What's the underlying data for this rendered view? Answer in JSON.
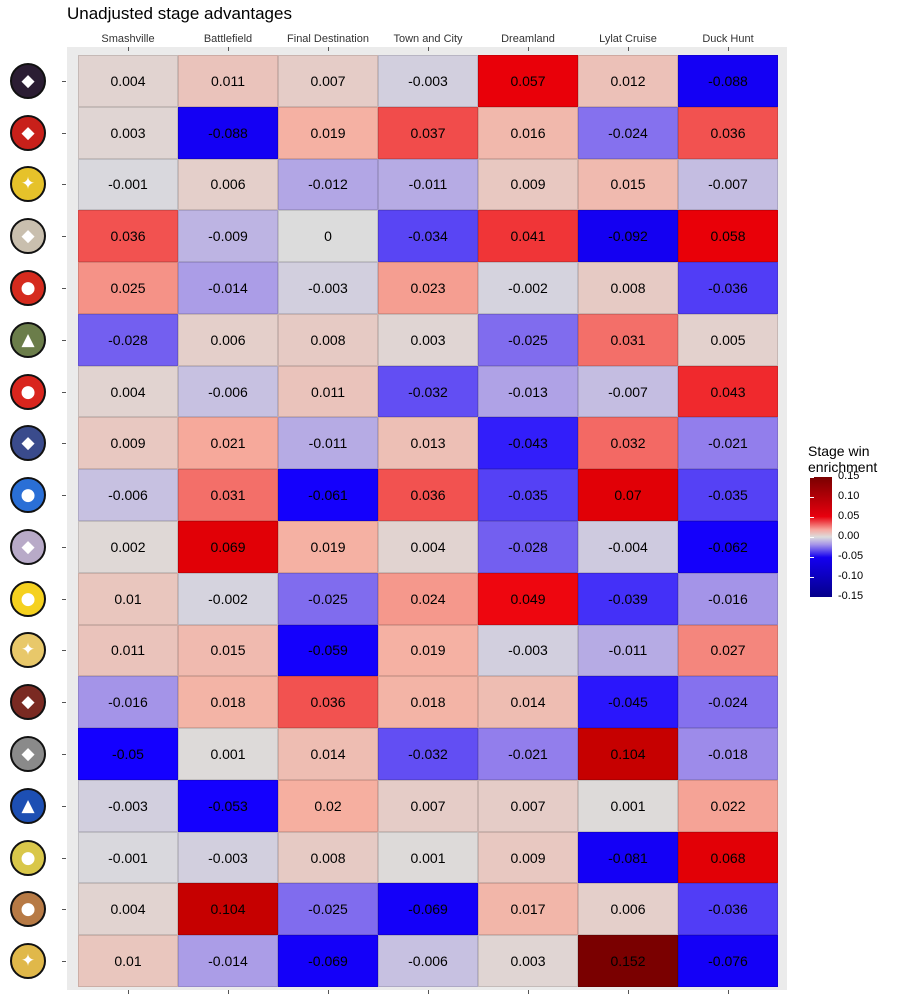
{
  "chart_data": {
    "type": "heatmap",
    "title": "Unadjusted stage advantages",
    "columns": [
      "Smashville",
      "Battlefield",
      "Final Destination",
      "Town and City",
      "Dreamland",
      "Lylat Cruise",
      "Duck Hunt"
    ],
    "row_labels": "fighter portrait icons (no text)",
    "values": [
      [
        "0.004",
        "0.011",
        "0.007",
        "-0.003",
        "0.057",
        "0.012",
        "-0.088"
      ],
      [
        "0.003",
        "-0.088",
        "0.019",
        "0.037",
        "0.016",
        "-0.024",
        "0.036"
      ],
      [
        "-0.001",
        "0.006",
        "-0.012",
        "-0.011",
        "0.009",
        "0.015",
        "-0.007"
      ],
      [
        "0.036",
        "-0.009",
        "0",
        "-0.034",
        "0.041",
        "-0.092",
        "0.058"
      ],
      [
        "0.025",
        "-0.014",
        "-0.003",
        "0.023",
        "-0.002",
        "0.008",
        "-0.036"
      ],
      [
        "-0.028",
        "0.006",
        "0.008",
        "0.003",
        "-0.025",
        "0.031",
        "0.005"
      ],
      [
        "0.004",
        "-0.006",
        "0.011",
        "-0.032",
        "-0.013",
        "-0.007",
        "0.043"
      ],
      [
        "0.009",
        "0.021",
        "-0.011",
        "0.013",
        "-0.043",
        "0.032",
        "-0.021"
      ],
      [
        "-0.006",
        "0.031",
        "-0.061",
        "0.036",
        "-0.035",
        "0.07",
        "-0.035"
      ],
      [
        "0.002",
        "0.069",
        "0.019",
        "0.004",
        "-0.028",
        "-0.004",
        "-0.062"
      ],
      [
        "0.01",
        "-0.002",
        "-0.025",
        "0.024",
        "0.049",
        "-0.039",
        "-0.016"
      ],
      [
        "0.011",
        "0.015",
        "-0.059",
        "0.019",
        "-0.003",
        "-0.011",
        "0.027"
      ],
      [
        "-0.016",
        "0.018",
        "0.036",
        "0.018",
        "0.014",
        "-0.045",
        "-0.024"
      ],
      [
        "-0.05",
        "0.001",
        "0.014",
        "-0.032",
        "-0.021",
        "0.104",
        "-0.018"
      ],
      [
        "-0.003",
        "-0.053",
        "0.02",
        "0.007",
        "0.007",
        "0.001",
        "0.022"
      ],
      [
        "-0.001",
        "-0.003",
        "0.008",
        "0.001",
        "0.009",
        "-0.081",
        "0.068"
      ],
      [
        "0.004",
        "0.104",
        "-0.025",
        "-0.069",
        "0.017",
        "0.006",
        "-0.036"
      ],
      [
        "0.01",
        "-0.014",
        "-0.069",
        "-0.006",
        "0.003",
        "0.152",
        "-0.076"
      ]
    ],
    "color_scale": {
      "type": "diverging",
      "limits": [
        -0.15,
        0.15
      ],
      "low": "#05008a",
      "mid": "#dcdcdc",
      "high": "#7a0000"
    },
    "legend": {
      "title_line1": "Stage win",
      "title_line2": "enrichment",
      "ticks": [
        "0.15",
        "0.10",
        "0.05",
        "0.00",
        "-0.05",
        "-0.10",
        "-0.15"
      ],
      "position": "right"
    }
  },
  "fighters": [
    {
      "icon": "fighter-icon-1",
      "color": "#2b1d33",
      "glyph": "◆"
    },
    {
      "icon": "fighter-icon-2",
      "color": "#c8201a",
      "glyph": "◆"
    },
    {
      "icon": "fighter-icon-3",
      "color": "#e6c22a",
      "glyph": "✦"
    },
    {
      "icon": "fighter-icon-4",
      "color": "#c9bfae",
      "glyph": "◆"
    },
    {
      "icon": "fighter-icon-5",
      "color": "#d52b1e",
      "glyph": "●"
    },
    {
      "icon": "fighter-icon-6",
      "color": "#6b7d4a",
      "glyph": "▲"
    },
    {
      "icon": "fighter-icon-7",
      "color": "#d9251d",
      "glyph": "●"
    },
    {
      "icon": "fighter-icon-8",
      "color": "#3a4b8c",
      "glyph": "◆"
    },
    {
      "icon": "fighter-icon-9",
      "color": "#2a6fd6",
      "glyph": "●"
    },
    {
      "icon": "fighter-icon-10",
      "color": "#b8aac8",
      "glyph": "◆"
    },
    {
      "icon": "fighter-icon-11",
      "color": "#f5d11f",
      "glyph": "●"
    },
    {
      "icon": "fighter-icon-12",
      "color": "#e8c86a",
      "glyph": "✦"
    },
    {
      "icon": "fighter-icon-13",
      "color": "#7a2a22",
      "glyph": "◆"
    },
    {
      "icon": "fighter-icon-14",
      "color": "#8a8a8a",
      "glyph": "◆"
    },
    {
      "icon": "fighter-icon-15",
      "color": "#1d4fb3",
      "glyph": "▲"
    },
    {
      "icon": "fighter-icon-16",
      "color": "#d9c74a",
      "glyph": "●"
    },
    {
      "icon": "fighter-icon-17",
      "color": "#b77a45",
      "glyph": "●"
    },
    {
      "icon": "fighter-icon-18",
      "color": "#e0b84a",
      "glyph": "✦"
    }
  ]
}
